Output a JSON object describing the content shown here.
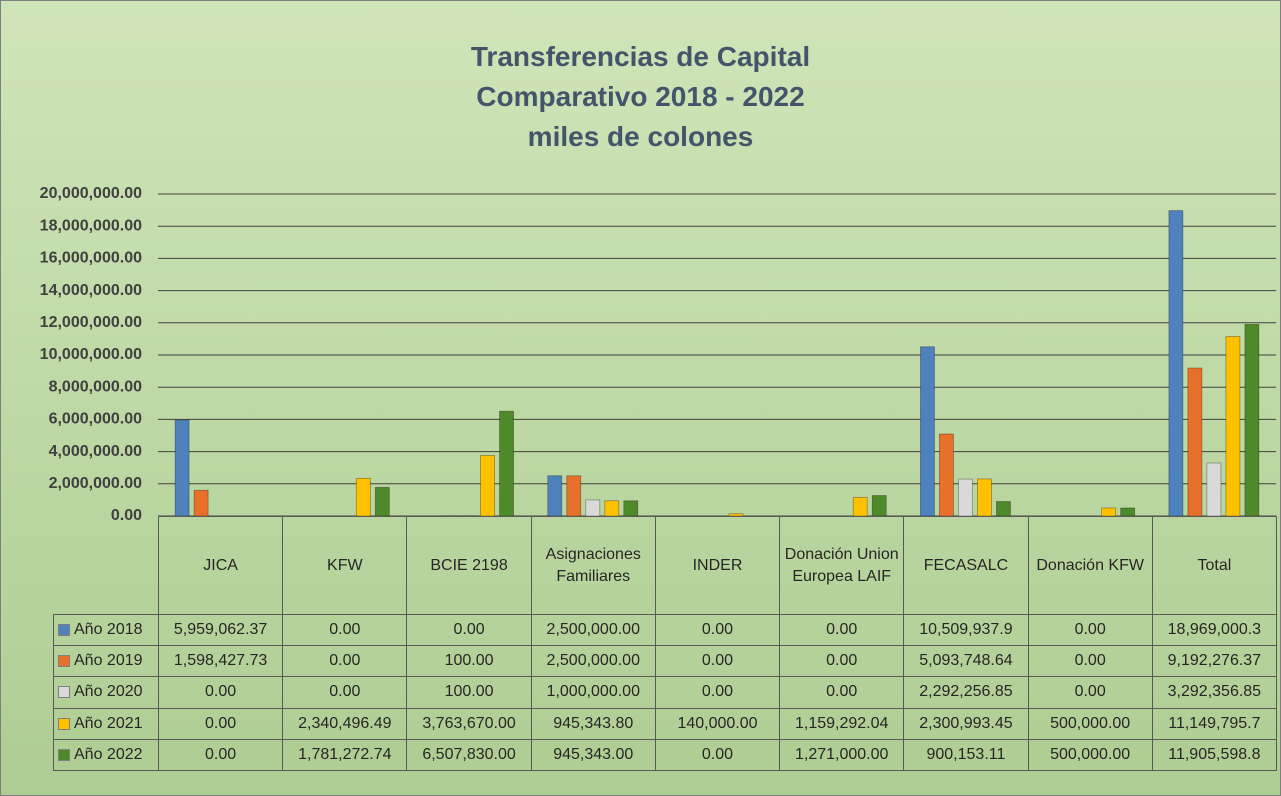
{
  "chart_data": {
    "type": "bar",
    "title": "Transferencias de Capital",
    "subtitle": "Comparativo 2018 - 2022",
    "y_axis_label": "miles de colones",
    "categories": [
      "JICA",
      "KFW",
      "BCIE 2198",
      "Asignaciones Familiares",
      "INDER",
      "Donación Union Europea LAIF",
      "FECASALC",
      "Donación KFW",
      "Total"
    ],
    "series": [
      {
        "name": "Año 2018",
        "color": "#4f81bd",
        "values": [
          5959062.37,
          0,
          0,
          2500000,
          0,
          0,
          10509937.9,
          0,
          18969000.3
        ],
        "value_labels": [
          "5,959,062.37",
          "0.00",
          "0.00",
          "2,500,000.00",
          "0.00",
          "0.00",
          "10,509,937.9",
          "0.00",
          "18,969,000.3"
        ]
      },
      {
        "name": "Año 2019",
        "color": "#e8702a",
        "values": [
          1598427.73,
          0,
          100,
          2500000,
          0,
          0,
          5093748.64,
          0,
          9192276.37
        ],
        "value_labels": [
          "1,598,427.73",
          "0.00",
          "100.00",
          "2,500,000.00",
          "0.00",
          "0.00",
          "5,093,748.64",
          "0.00",
          "9,192,276.37"
        ]
      },
      {
        "name": "Año 2020",
        "color": "#d9d9d9",
        "values": [
          0,
          0,
          100,
          1000000,
          0,
          0,
          2292256.85,
          0,
          3292356.85
        ],
        "value_labels": [
          "0.00",
          "0.00",
          "100.00",
          "1,000,000.00",
          "0.00",
          "0.00",
          "2,292,256.85",
          "0.00",
          "3,292,356.85"
        ]
      },
      {
        "name": "Año 2021",
        "color": "#ffc000",
        "values": [
          0,
          2340496.49,
          3763670,
          945343.8,
          140000,
          1159292.04,
          2300993.45,
          500000,
          11149795.7
        ],
        "value_labels": [
          "0.00",
          "2,340,496.49",
          "3,763,670.00",
          "945,343.80",
          "140,000.00",
          "1,159,292.04",
          "2,300,993.45",
          "500,000.00",
          "11,149,795.7"
        ]
      },
      {
        "name": "Año 2022",
        "color": "#4e8a2a",
        "values": [
          0,
          1781272.74,
          6507830,
          945343,
          0,
          1271000,
          900153.11,
          500000,
          11905598.8
        ],
        "value_labels": [
          "0.00",
          "1,781,272.74",
          "6,507,830.00",
          "945,343.00",
          "0.00",
          "1,271,000.00",
          "900,153.11",
          "500,000.00",
          "11,905,598.8"
        ]
      }
    ],
    "ylim": [
      0,
      20000000
    ],
    "yticks": [
      {
        "value": 0,
        "label": "0.00"
      },
      {
        "value": 2000000,
        "label": "2,000,000.00"
      },
      {
        "value": 4000000,
        "label": "4,000,000.00"
      },
      {
        "value": 6000000,
        "label": "6,000,000.00"
      },
      {
        "value": 8000000,
        "label": "8,000,000.00"
      },
      {
        "value": 10000000,
        "label": "10,000,000.00"
      },
      {
        "value": 12000000,
        "label": "12,000,000.00"
      },
      {
        "value": 14000000,
        "label": "14,000,000.00"
      },
      {
        "value": 16000000,
        "label": "16,000,000.00"
      },
      {
        "value": 18000000,
        "label": "18,000,000.00"
      },
      {
        "value": 20000000,
        "label": "20,000,000.00"
      }
    ],
    "grid": true,
    "data_table": true
  }
}
